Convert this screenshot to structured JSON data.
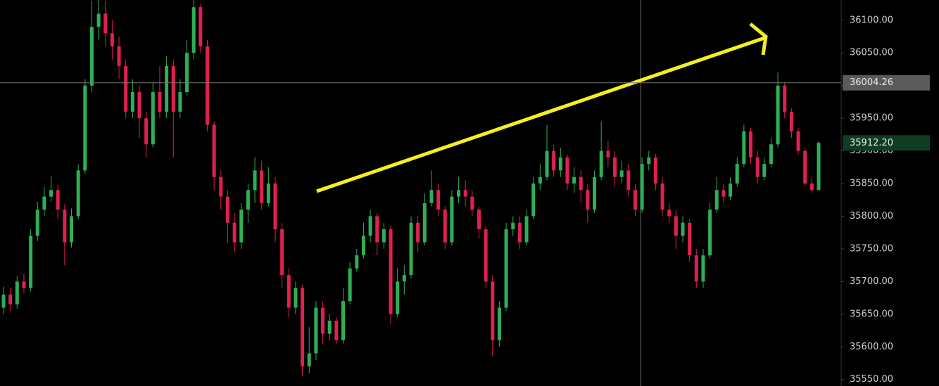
{
  "chart_data": {
    "type": "candlestick",
    "up_color": "#2fae55",
    "down_color": "#e0204f",
    "ylim": [
      35540,
      36131
    ],
    "yticks": [
      {
        "value": 36100,
        "label": "36100.00"
      },
      {
        "value": 36050,
        "label": "36050.00"
      },
      {
        "value": 36000,
        "label": "36000.00"
      },
      {
        "value": 35950,
        "label": "35950.00"
      },
      {
        "value": 35900,
        "label": "35900.00"
      },
      {
        "value": 35850,
        "label": "35850.00"
      },
      {
        "value": 35800,
        "label": "35800.00"
      },
      {
        "value": 35750,
        "label": "35750.00"
      },
      {
        "value": 35700,
        "label": "35700.00"
      },
      {
        "value": 35650,
        "label": "35650.00"
      },
      {
        "value": 35600,
        "label": "35600.00"
      },
      {
        "value": 35550,
        "label": "35550.00"
      }
    ],
    "markers": [
      {
        "value": 36004.26,
        "color": "#5a5a5a"
      },
      {
        "value": 35912.2,
        "label": "35912.20",
        "color": "#0f3d22"
      }
    ],
    "open": [
      35660,
      35680,
      35665,
      35700,
      35690,
      35770,
      35810,
      35830,
      35840,
      35810,
      35760,
      35800,
      35870,
      36000,
      36090,
      36110,
      36080,
      36060,
      36030,
      35960,
      35990,
      35950,
      35910,
      35990,
      35960,
      36030,
      35960,
      35990,
      36050,
      36120,
      36060,
      35940,
      35860,
      35830,
      35790,
      35760,
      35810,
      35840,
      35870,
      35820,
      35850,
      35780,
      35710,
      35660,
      35690,
      35570,
      35590,
      35660,
      35620,
      35640,
      35610,
      35670,
      35720,
      35740,
      35770,
      35800,
      35760,
      35780,
      35650,
      35700,
      35710,
      35790,
      35760,
      35820,
      35840,
      35810,
      35760,
      35830,
      35840,
      35830,
      35810,
      35780,
      35700,
      35610,
      35660,
      35780,
      35790,
      35760,
      35800,
      35850,
      35860,
      35900,
      35870,
      35890,
      35850,
      35860,
      35840,
      35810,
      35860,
      35900,
      35890,
      35860,
      35870,
      35840,
      35810,
      35880,
      35890,
      35850,
      35810,
      35800,
      35770,
      35790,
      35740,
      35700,
      35740,
      35810,
      35840,
      35830,
      35850,
      35880,
      35930,
      35890,
      35860,
      35880,
      35910,
      36000,
      35960,
      35930,
      35900,
      35850,
      35840
    ],
    "high": [
      35692,
      35690,
      35708,
      35712,
      35780,
      35822,
      35845,
      35862,
      35848,
      35818,
      35812,
      35880,
      36010,
      36130,
      36135,
      36130,
      36100,
      36075,
      36040,
      36010,
      36000,
      35960,
      36005,
      36030,
      36045,
      36040,
      36010,
      36070,
      36135,
      36125,
      36070,
      35945,
      35870,
      35840,
      35805,
      35820,
      35850,
      35890,
      35885,
      35875,
      35860,
      35790,
      35720,
      35700,
      35695,
      35630,
      35670,
      35670,
      35650,
      35645,
      35690,
      35730,
      35750,
      35790,
      35810,
      35805,
      35790,
      35785,
      35720,
      35725,
      35800,
      35800,
      35835,
      35870,
      35850,
      35815,
      35840,
      35860,
      35855,
      35840,
      35815,
      35785,
      35710,
      35670,
      35790,
      35800,
      35800,
      35810,
      35860,
      35880,
      35940,
      35910,
      35905,
      35895,
      35875,
      35870,
      35850,
      35870,
      35945,
      35915,
      35900,
      35885,
      35880,
      35850,
      35890,
      35900,
      35895,
      35860,
      35820,
      35810,
      35800,
      35795,
      35750,
      35750,
      35820,
      35860,
      35850,
      35860,
      35890,
      35940,
      35935,
      35900,
      35890,
      35920,
      36020,
      36005,
      35965,
      35935,
      35905,
      35860,
      35915
    ],
    "low": [
      35650,
      35655,
      35658,
      35682,
      35685,
      35762,
      35800,
      35822,
      35795,
      35725,
      35752,
      35795,
      35865,
      35990,
      36070,
      36060,
      36040,
      36010,
      35950,
      35950,
      35920,
      35890,
      35905,
      35950,
      35950,
      35890,
      35950,
      35985,
      36040,
      36050,
      35930,
      35840,
      35810,
      35760,
      35745,
      35750,
      35790,
      35820,
      35810,
      35815,
      35760,
      35690,
      35645,
      35650,
      35555,
      35560,
      35580,
      35605,
      35610,
      35605,
      35605,
      35665,
      35715,
      35735,
      35760,
      35740,
      35750,
      35635,
      35645,
      35680,
      35705,
      35745,
      35755,
      35815,
      35800,
      35750,
      35755,
      35820,
      35815,
      35800,
      35765,
      35690,
      35585,
      35600,
      35655,
      35770,
      35750,
      35755,
      35795,
      35840,
      35855,
      35860,
      35860,
      35840,
      35835,
      35820,
      35790,
      35805,
      35855,
      35875,
      35845,
      35850,
      35830,
      35800,
      35805,
      35870,
      35840,
      35800,
      35790,
      35750,
      35760,
      35730,
      35690,
      35690,
      35735,
      35805,
      35820,
      35825,
      35845,
      35875,
      35880,
      35850,
      35855,
      35875,
      35905,
      35950,
      35920,
      35895,
      35845,
      35835,
      35840
    ],
    "close": [
      35680,
      35665,
      35700,
      35690,
      35770,
      35810,
      35830,
      35840,
      35810,
      35760,
      35800,
      35870,
      36000,
      36090,
      36110,
      36080,
      36060,
      36030,
      35960,
      35990,
      35950,
      35910,
      35990,
      35960,
      36030,
      35960,
      35990,
      36050,
      36120,
      36060,
      35940,
      35860,
      35830,
      35790,
      35760,
      35810,
      35840,
      35870,
      35820,
      35850,
      35780,
      35710,
      35660,
      35690,
      35570,
      35590,
      35660,
      35620,
      35640,
      35610,
      35670,
      35720,
      35740,
      35770,
      35800,
      35760,
      35780,
      35650,
      35700,
      35710,
      35790,
      35760,
      35820,
      35840,
      35810,
      35760,
      35830,
      35840,
      35830,
      35810,
      35780,
      35700,
      35610,
      35660,
      35780,
      35790,
      35760,
      35800,
      35850,
      35860,
      35900,
      35870,
      35890,
      35850,
      35860,
      35840,
      35810,
      35860,
      35900,
      35890,
      35860,
      35870,
      35840,
      35810,
      35880,
      35890,
      35850,
      35810,
      35800,
      35770,
      35790,
      35740,
      35700,
      35740,
      35810,
      35840,
      35830,
      35850,
      35880,
      35930,
      35890,
      35860,
      35880,
      35910,
      36000,
      35960,
      35930,
      35900,
      35850,
      35840,
      35912.2
    ]
  }
}
